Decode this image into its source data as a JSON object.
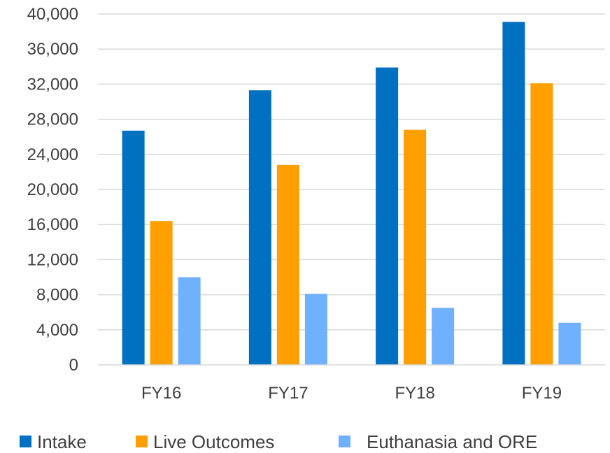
{
  "chart_data": {
    "type": "bar",
    "title": "",
    "xlabel": "",
    "ylabel": "",
    "categories": [
      "FY16",
      "FY17",
      "FY18",
      "FY19"
    ],
    "ylim": [
      0,
      40000
    ],
    "yticks": [
      0,
      4000,
      8000,
      12000,
      16000,
      20000,
      24000,
      28000,
      32000,
      36000,
      40000
    ],
    "ytick_labels": [
      "0",
      "4,000",
      "8,000",
      "12,000",
      "16,000",
      "20,000",
      "24,000",
      "28,000",
      "32,000",
      "36,000",
      "40,000"
    ],
    "grid": true,
    "legend_position": "bottom",
    "series": [
      {
        "name": "Intake",
        "color": "#0070C0",
        "values": [
          26700,
          31300,
          33900,
          39100
        ]
      },
      {
        "name": "Live Outcomes",
        "color": "#FF9F00",
        "values": [
          16400,
          22800,
          26800,
          32100
        ]
      },
      {
        "name": "Euthanasia and ORE",
        "color": "#6FB0FF",
        "values": [
          10000,
          8100,
          6500,
          4800
        ]
      }
    ]
  }
}
